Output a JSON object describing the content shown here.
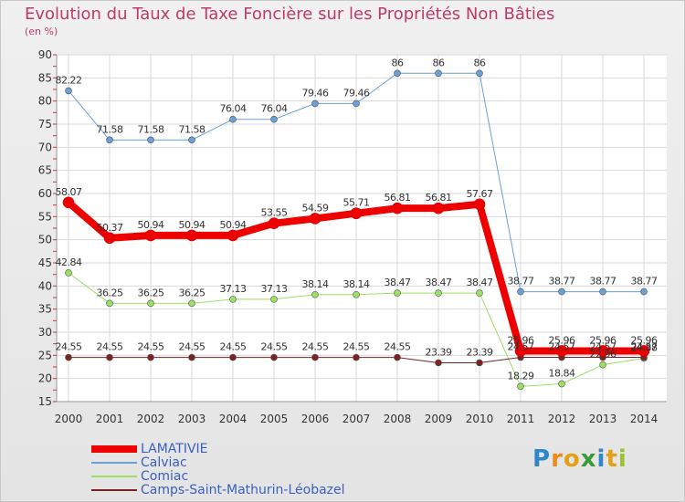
{
  "chart_data": {
    "type": "line",
    "title": "Evolution du Taux de Taxe Foncière sur les Propriétés Non Bâties",
    "subtitle": "(en %)",
    "categories": [
      "2000",
      "2001",
      "2002",
      "2003",
      "2004",
      "2005",
      "2006",
      "2007",
      "2008",
      "2009",
      "2010",
      "2011",
      "2012",
      "2013",
      "2014"
    ],
    "ylim": [
      15,
      90
    ],
    "yticks": [
      15,
      20,
      25,
      30,
      35,
      40,
      45,
      50,
      55,
      60,
      65,
      70,
      75,
      80,
      85,
      90
    ],
    "series": [
      {
        "name": "LAMATIVIE",
        "color": "#ee0000",
        "values": [
          58.07,
          50.37,
          50.94,
          50.94,
          50.94,
          53.55,
          54.59,
          55.71,
          56.81,
          56.81,
          57.67,
          25.96,
          25.96,
          25.96,
          25.96
        ],
        "labels": [
          "58.07",
          "50.37",
          "50.94",
          "50.94",
          "50.94",
          "53.55",
          "54.59",
          "55.71",
          "56.81",
          "56.81",
          "57.67",
          "25.96",
          "25.96",
          "25.96",
          "25.96"
        ]
      },
      {
        "name": "Calviac",
        "color": "#6a9fd8",
        "values": [
          82.22,
          71.58,
          71.58,
          71.58,
          76.04,
          76.04,
          79.46,
          79.46,
          86,
          86,
          86,
          38.77,
          38.77,
          38.77,
          38.77
        ],
        "labels": [
          "82.22",
          "71.58",
          "71.58",
          "71.58",
          "76.04",
          "76.04",
          "79.46",
          "79.46",
          "86",
          "86",
          "86",
          "38.77",
          "38.77",
          "38.77",
          "38.77"
        ]
      },
      {
        "name": "Comiac",
        "color": "#9be064",
        "values": [
          42.84,
          36.25,
          36.25,
          36.25,
          37.13,
          37.13,
          38.14,
          38.14,
          38.47,
          38.47,
          38.47,
          18.29,
          18.84,
          22.96,
          24.38
        ],
        "labels": [
          "42.84",
          "36.25",
          "36.25",
          "36.25",
          "37.13",
          "37.13",
          "38.14",
          "38.14",
          "38.47",
          "38.47",
          "38.47",
          "18.29",
          "18.84",
          "22.96",
          "24.38"
        ]
      },
      {
        "name": "Camps-Saint-Mathurin-Léobazel",
        "color": "#7a2323",
        "values": [
          24.55,
          24.55,
          24.55,
          24.55,
          24.55,
          24.55,
          24.55,
          24.55,
          24.55,
          23.39,
          23.39,
          24.57,
          24.57,
          24.57,
          24.57
        ],
        "labels": [
          "24.55",
          "24.55",
          "24.55",
          "24.55",
          "24.55",
          "24.55",
          "24.55",
          "24.55",
          "24.55",
          "23.39",
          "23.39",
          "24.57",
          "24.57",
          "24.57",
          "24.57"
        ]
      }
    ]
  },
  "logo": {
    "text": "Proxiti"
  }
}
